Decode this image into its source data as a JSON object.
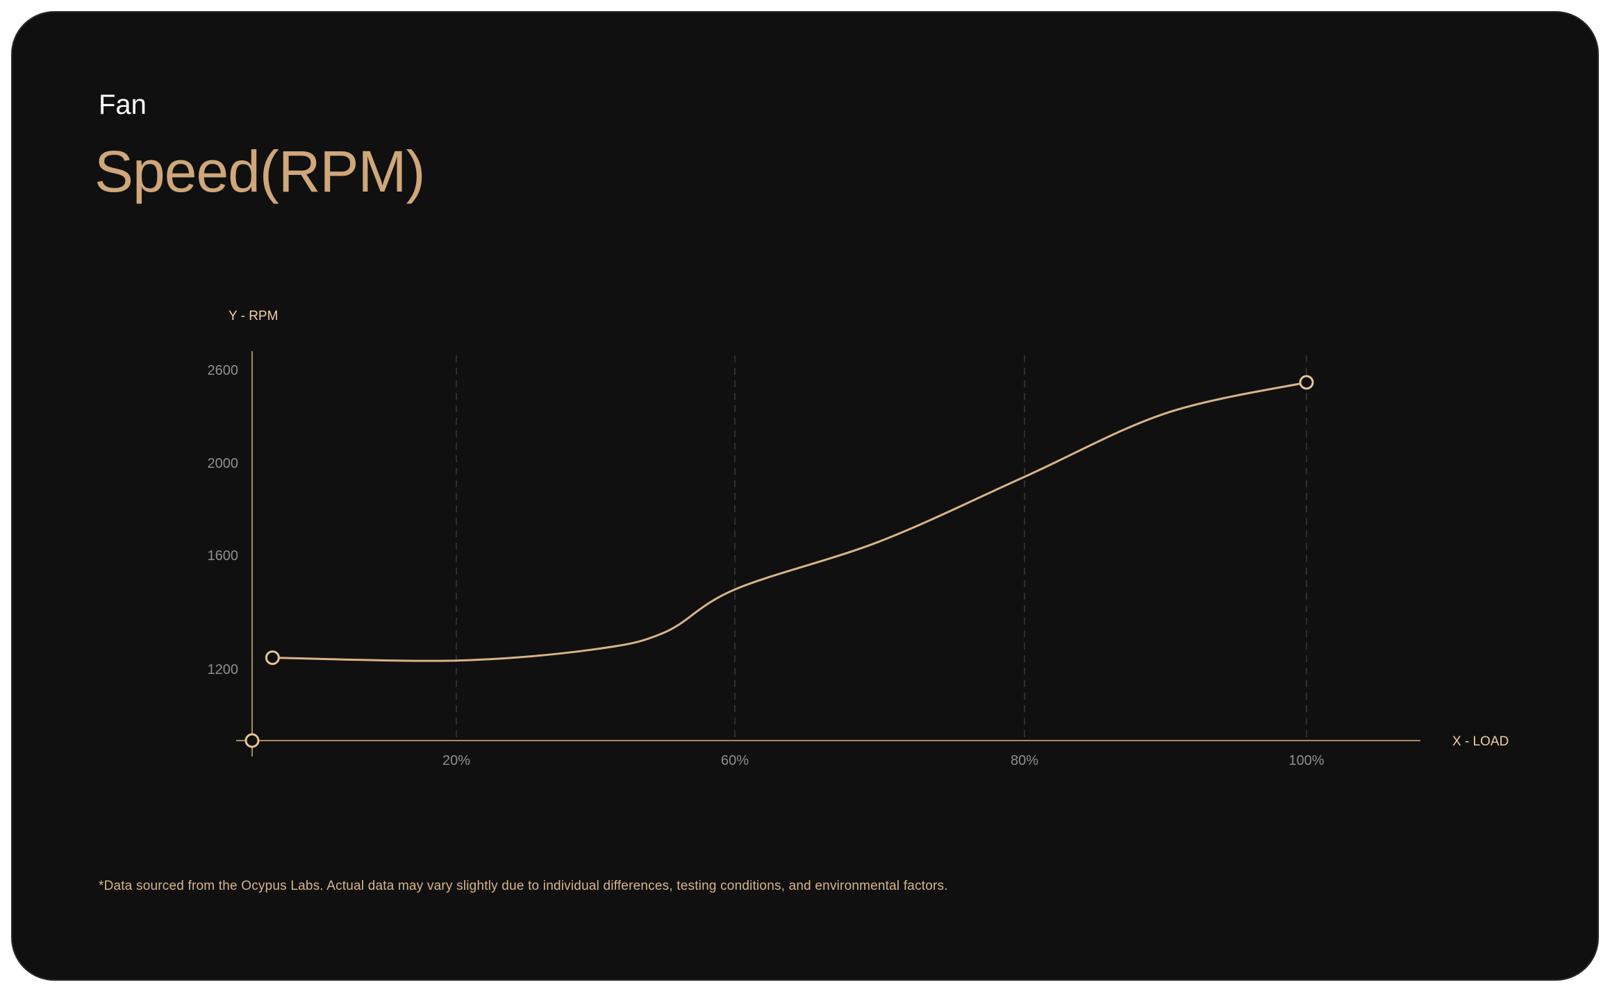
{
  "header": {
    "subtitle": "Fan",
    "title": "Speed(RPM)"
  },
  "footnote": "*Data sourced from the Ocypus Labs. Actual data may vary slightly due to individual differences, testing conditions, and environmental factors.",
  "colors": {
    "background": "#101010",
    "accent": "#cfa77a",
    "curve": "#d9b485",
    "axis_title": "#f1cfa2",
    "tick_text": "#8f8f8f"
  },
  "chart_data": {
    "type": "line",
    "xlabel": "X - LOAD",
    "ylabel": "Y - RPM",
    "x_ticks": [
      {
        "value": 20,
        "label": "20%"
      },
      {
        "value": 60,
        "label": "60%"
      },
      {
        "value": 80,
        "label": "80%"
      },
      {
        "value": 100,
        "label": "100%"
      }
    ],
    "y_ticks": [
      {
        "value": 1200,
        "label": "1200"
      },
      {
        "value": 1600,
        "label": "1600"
      },
      {
        "value": 2000,
        "label": "2000"
      },
      {
        "value": 2600,
        "label": "2600"
      }
    ],
    "grid": "dashed vertical at x ticks",
    "series": [
      {
        "points": [
          {
            "x": 2,
            "y": 1240
          },
          {
            "x": 20,
            "y": 1230
          },
          {
            "x": 40,
            "y": 1270
          },
          {
            "x": 50,
            "y": 1330
          },
          {
            "x": 60,
            "y": 1480
          },
          {
            "x": 70,
            "y": 1660
          },
          {
            "x": 80,
            "y": 1940
          },
          {
            "x": 90,
            "y": 2320
          },
          {
            "x": 100,
            "y": 2520
          }
        ],
        "markers": [
          {
            "x": 2,
            "y": 1240
          },
          {
            "x": 100,
            "y": 2520
          }
        ]
      }
    ],
    "origin_marker": true
  }
}
